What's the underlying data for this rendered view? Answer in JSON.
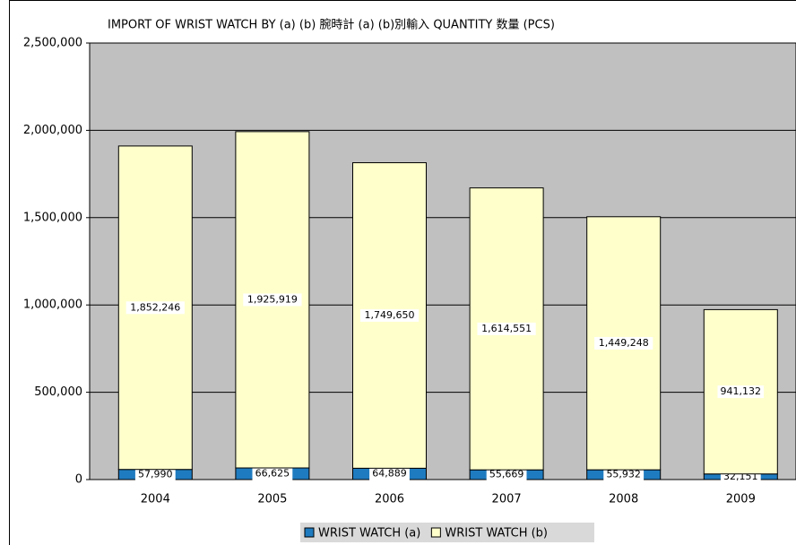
{
  "chart_data": {
    "type": "stacked-bar",
    "title": "IMPORT OF  WRIST WATCH  BY (a) (b)    腕時計 (a) (b)別輸入    QUANTITY  数量 (PCS)",
    "categories": [
      "2004",
      "2005",
      "2006",
      "2007",
      "2008",
      "2009"
    ],
    "series": [
      {
        "name": "WRIST WATCH (a)",
        "color": "#1f7bbf",
        "values": [
          57990,
          66625,
          64889,
          55669,
          55932,
          32151
        ],
        "value_labels": [
          "57,990",
          "66,625",
          "64,889",
          "55,669",
          "55,932",
          "32,151"
        ]
      },
      {
        "name": "WRIST WATCH (b)",
        "color": "#ffffcc",
        "values": [
          1852246,
          1925919,
          1749650,
          1614551,
          1449248,
          941132
        ],
        "value_labels": [
          "1,852,246",
          "1,925,919",
          "1,749,650",
          "1,614,551",
          "1,449,248",
          "941,132"
        ]
      }
    ],
    "ylim": [
      0,
      2500000
    ],
    "yticks": [
      0,
      {
        "value": 500000,
        "label": "500,000"
      },
      {
        "value": 1000000,
        "label": "1,000,000"
      },
      {
        "value": 1500000,
        "label": "1,500,000"
      },
      {
        "value": 2000000,
        "label": "2,000,000"
      },
      {
        "value": 2500000,
        "label": "2,500,000"
      }
    ],
    "grid": true,
    "legend": "bottom",
    "plot_background": "#c0c0c0"
  }
}
